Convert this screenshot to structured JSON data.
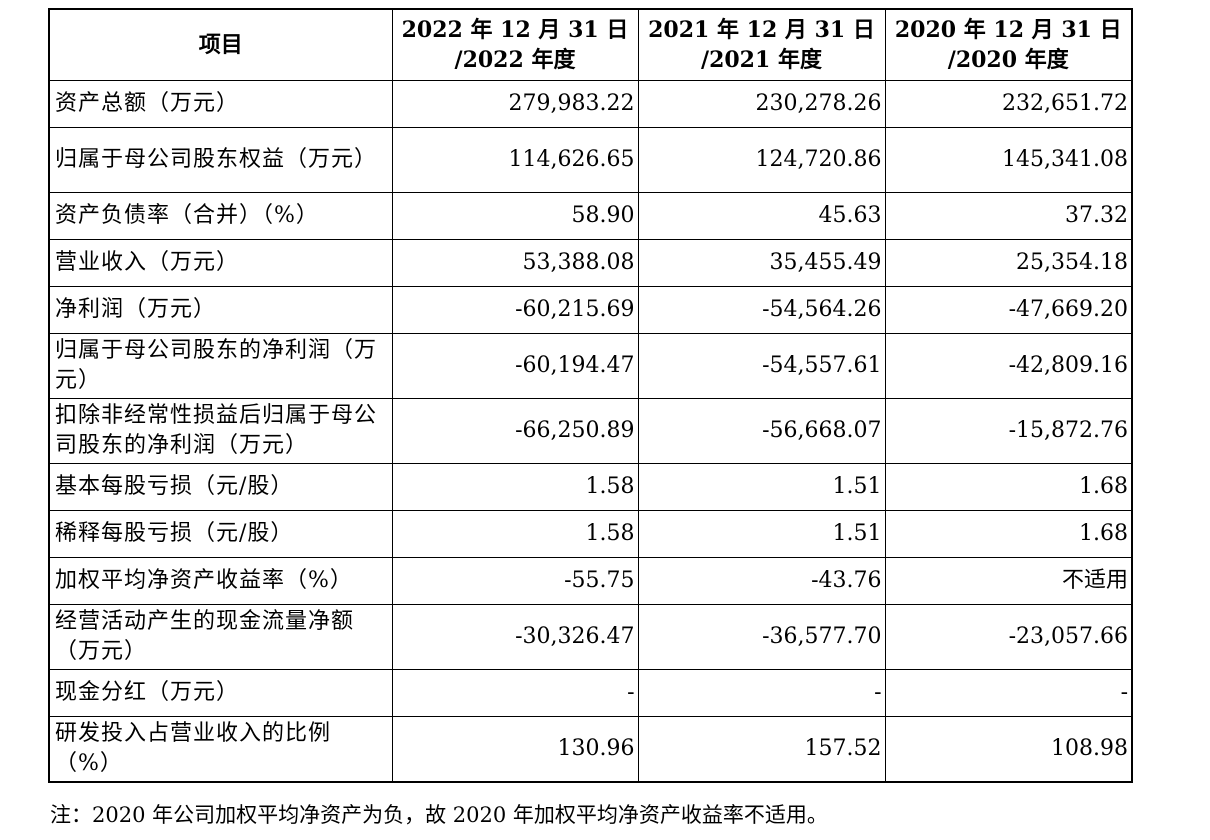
{
  "table": {
    "headers": [
      {
        "line1": "项目",
        "line2": ""
      },
      {
        "line1": "2022 年 12 月 31 日",
        "line2": "/2022 年度"
      },
      {
        "line1": "2021 年 12 月 31 日",
        "line2": "/2021 年度"
      },
      {
        "line1": "2020 年 12 月 31 日",
        "line2": "/2020 年度"
      }
    ],
    "rows": [
      {
        "label": "资产总额（万元）",
        "values": [
          "279,983.22",
          "230,278.26",
          "232,651.72"
        ]
      },
      {
        "label": "归属于母公司股东权益（万元）",
        "values": [
          "114,626.65",
          "124,720.86",
          "145,341.08"
        ]
      },
      {
        "label": "资产负债率（合并）（%）",
        "values": [
          "58.90",
          "45.63",
          "37.32"
        ]
      },
      {
        "label": "营业收入（万元）",
        "values": [
          "53,388.08",
          "35,455.49",
          "25,354.18"
        ]
      },
      {
        "label": "净利润（万元）",
        "values": [
          "-60,215.69",
          "-54,564.26",
          "-47,669.20"
        ]
      },
      {
        "label": "归属于母公司股东的净利润（万元）",
        "values": [
          "-60,194.47",
          "-54,557.61",
          "-42,809.16"
        ]
      },
      {
        "label": "扣除非经常性损益后归属于母公司股东的净利润（万元）",
        "values": [
          "-66,250.89",
          "-56,668.07",
          "-15,872.76"
        ]
      },
      {
        "label": "基本每股亏损（元/股）",
        "values": [
          "1.58",
          "1.51",
          "1.68"
        ]
      },
      {
        "label": "稀释每股亏损（元/股）",
        "values": [
          "1.58",
          "1.51",
          "1.68"
        ]
      },
      {
        "label": "加权平均净资产收益率（%）",
        "values": [
          "-55.75",
          "-43.76",
          "不适用"
        ]
      },
      {
        "label": "经营活动产生的现金流量净额（万元）",
        "values": [
          "-30,326.47",
          "-36,577.70",
          "-23,057.66"
        ]
      },
      {
        "label": "现金分红（万元）",
        "values": [
          "-",
          "-",
          "-"
        ]
      },
      {
        "label": "研发投入占营业收入的比例（%）",
        "values": [
          "130.96",
          "157.52",
          "108.98"
        ]
      }
    ]
  },
  "footnote": "注：2020 年公司加权平均净资产为负，故 2020 年加权平均净资产收益率不适用。"
}
